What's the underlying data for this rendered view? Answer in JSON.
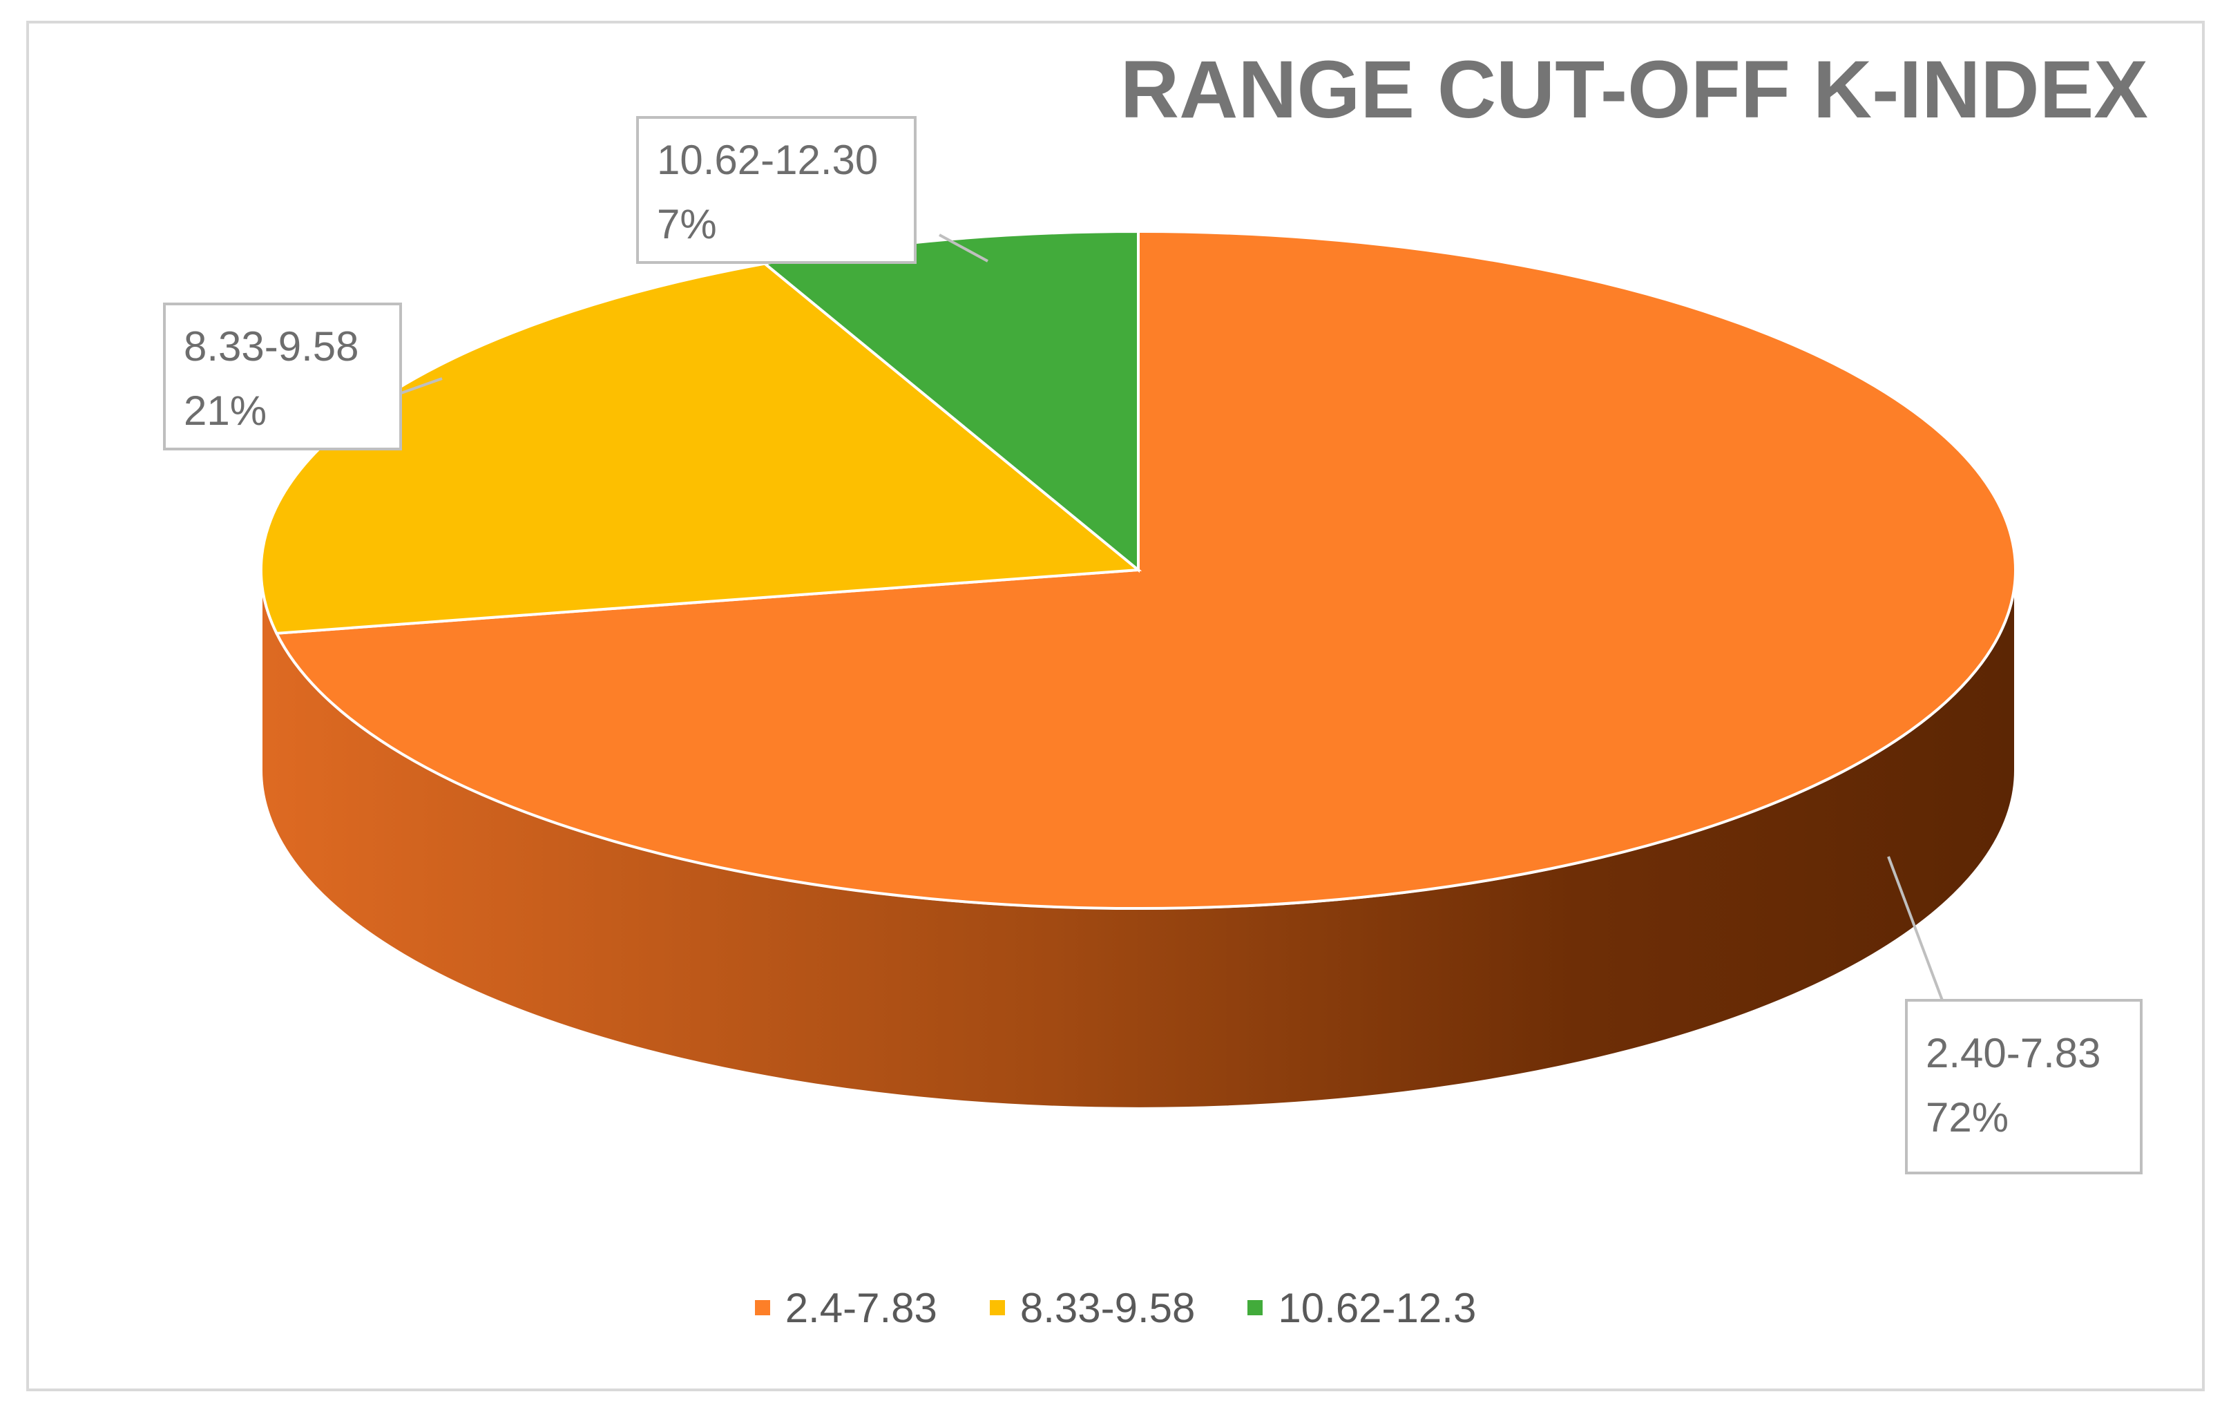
{
  "chart_data": {
    "type": "pie",
    "title": "RANGE CUT-OFF K-INDEX",
    "legend_position": "bottom",
    "categories": [
      "2.4-7.83",
      "8.33-9.58",
      "10.62-12.3"
    ],
    "values": [
      72,
      21,
      7
    ],
    "data_labels": [
      {
        "category": "2.40-7.83",
        "percent": "72%"
      },
      {
        "category": "8.33-9.58",
        "percent": "21%"
      },
      {
        "category": "10.62-12.30",
        "percent": "7%"
      }
    ],
    "colors": [
      "#FD7F28",
      "#FDBF00",
      "#42AB3B"
    ]
  }
}
